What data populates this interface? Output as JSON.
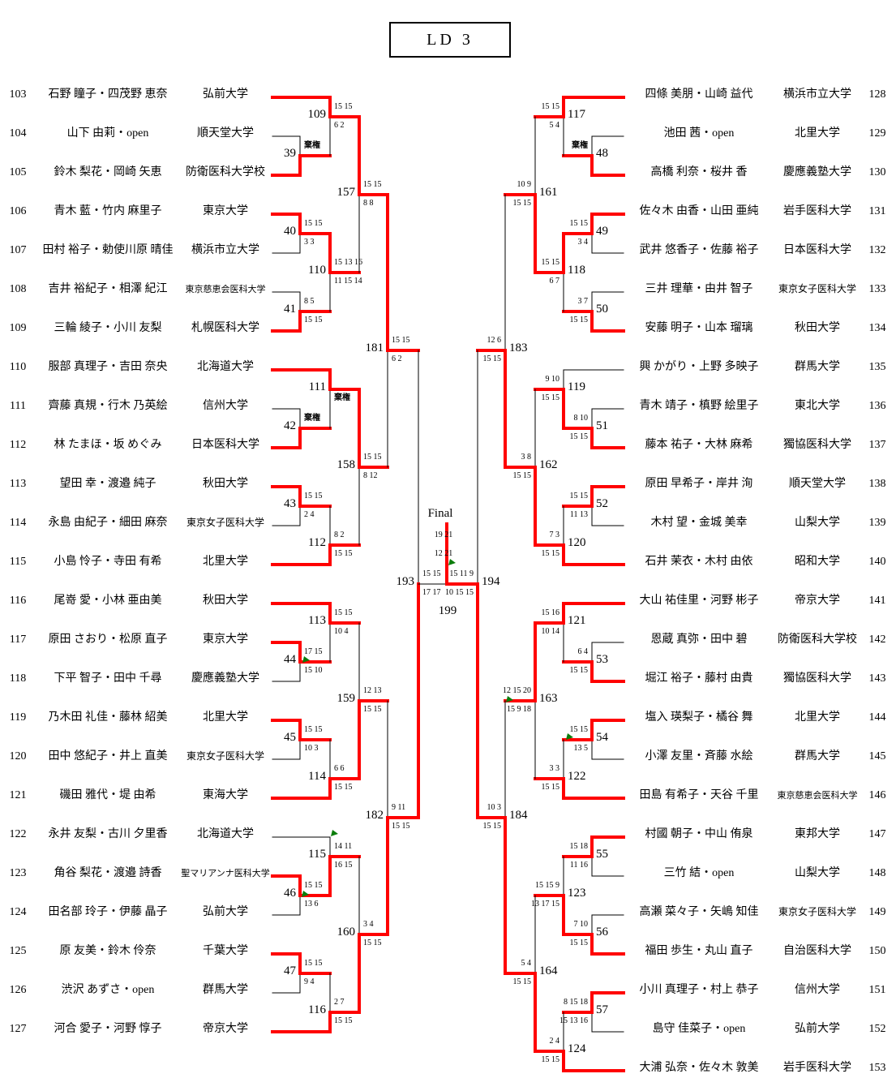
{
  "title": "LD 3",
  "colors": {
    "winner": "#ff0000",
    "line": "#000000",
    "flag": "#0b7d0b"
  },
  "final": {
    "label": "Final",
    "match_number": "199",
    "scores": {
      "game1": "19 21",
      "game2": "12 21"
    }
  },
  "entries_left": [
    {
      "seed": "103",
      "names": "石野 瞳子・四茂野 恵奈",
      "university": "弘前大学"
    },
    {
      "seed": "104",
      "names": "山下 由莉・open",
      "university": "順天堂大学"
    },
    {
      "seed": "105",
      "names": "鈴木 梨花・岡崎 矢恵",
      "university": "防衛医科大学校"
    },
    {
      "seed": "106",
      "names": "青木 藍・竹内 麻里子",
      "university": "東京大学"
    },
    {
      "seed": "107",
      "names": "田村 裕子・勅使川原 晴佳",
      "university": "横浜市立大学"
    },
    {
      "seed": "108",
      "names": "吉井 裕紀子・相澤 紀江",
      "university": "東京慈恵会医科大学"
    },
    {
      "seed": "109",
      "names": "三輪 綾子・小川 友梨",
      "university": "札幌医科大学"
    },
    {
      "seed": "110",
      "names": "服部 真理子・吉田 奈央",
      "university": "北海道大学"
    },
    {
      "seed": "111",
      "names": "齊藤 真規・行木 乃英絵",
      "university": "信州大学"
    },
    {
      "seed": "112",
      "names": "林 たまほ・坂 めぐみ",
      "university": "日本医科大学"
    },
    {
      "seed": "113",
      "names": "望田 幸・渡邉 純子",
      "university": "秋田大学"
    },
    {
      "seed": "114",
      "names": "永島 由紀子・細田 麻奈",
      "university": "東京女子医科大学"
    },
    {
      "seed": "115",
      "names": "小島 怜子・寺田 有希",
      "university": "北里大学"
    },
    {
      "seed": "116",
      "names": "尾嵜 愛・小林 亜由美",
      "university": "秋田大学"
    },
    {
      "seed": "117",
      "names": "原田 さおり・松原 直子",
      "university": "東京大学"
    },
    {
      "seed": "118",
      "names": "下平 智子・田中 千尋",
      "university": "慶應義塾大学"
    },
    {
      "seed": "119",
      "names": "乃木田 礼佳・藤林 紹美",
      "university": "北里大学"
    },
    {
      "seed": "120",
      "names": "田中 悠紀子・井上 直美",
      "university": "東京女子医科大学"
    },
    {
      "seed": "121",
      "names": "磯田 雅代・堤 由希",
      "university": "東海大学"
    },
    {
      "seed": "122",
      "names": "永井 友梨・古川 夕里香",
      "university": "北海道大学"
    },
    {
      "seed": "123",
      "names": "角谷 梨花・渡邉 詩香",
      "university": "聖マリアンナ医科大学"
    },
    {
      "seed": "124",
      "names": "田名部 玲子・伊藤 晶子",
      "university": "弘前大学"
    },
    {
      "seed": "125",
      "names": "原 友美・鈴木 伶奈",
      "university": "千葉大学"
    },
    {
      "seed": "126",
      "names": "渋沢 あずさ・open",
      "university": "群馬大学"
    },
    {
      "seed": "127",
      "names": "河合 愛子・河野 惇子",
      "university": "帝京大学"
    }
  ],
  "entries_right": [
    {
      "seed": "128",
      "names": "四條 美朋・山崎 益代",
      "university": "横浜市立大学"
    },
    {
      "seed": "129",
      "names": "池田 茜・open",
      "university": "北里大学"
    },
    {
      "seed": "130",
      "names": "高橋 利奈・桜井 香",
      "university": "慶應義塾大学"
    },
    {
      "seed": "131",
      "names": "佐々木 由香・山田 亜純",
      "university": "岩手医科大学"
    },
    {
      "seed": "132",
      "names": "武井 悠香子・佐藤 裕子",
      "university": "日本医科大学"
    },
    {
      "seed": "133",
      "names": "三井 理華・由井 智子",
      "university": "東京女子医科大学"
    },
    {
      "seed": "134",
      "names": "安藤 明子・山本 瑠璃",
      "university": "秋田大学"
    },
    {
      "seed": "135",
      "names": "興 かがり・上野 多映子",
      "university": "群馬大学"
    },
    {
      "seed": "136",
      "names": "青木 靖子・槙野 絵里子",
      "university": "東北大学"
    },
    {
      "seed": "137",
      "names": "藤本 祐子・大林 麻希",
      "university": "獨協医科大学"
    },
    {
      "seed": "138",
      "names": "原田 早希子・岸井 洵",
      "university": "順天堂大学"
    },
    {
      "seed": "139",
      "names": "木村 望・金城 美幸",
      "university": "山梨大学"
    },
    {
      "seed": "140",
      "names": "石井 茉衣・木村 由依",
      "university": "昭和大学"
    },
    {
      "seed": "141",
      "names": "大山 祐佳里・河野 彬子",
      "university": "帝京大学"
    },
    {
      "seed": "142",
      "names": "恩蔵 真弥・田中 碧",
      "university": "防衛医科大学校"
    },
    {
      "seed": "143",
      "names": "堀江 裕子・藤村 由貴",
      "university": "獨協医科大学"
    },
    {
      "seed": "144",
      "names": "塩入 瑛梨子・橘谷 舞",
      "university": "北里大学"
    },
    {
      "seed": "145",
      "names": "小澤 友里・斉藤 水絵",
      "university": "群馬大学"
    },
    {
      "seed": "146",
      "names": "田島 有希子・天谷 千里",
      "university": "東京慈恵会医科大学"
    },
    {
      "seed": "147",
      "names": "村國 朝子・中山 侑泉",
      "university": "東邦大学"
    },
    {
      "seed": "148",
      "names": "三竹 結・open",
      "university": "山梨大学"
    },
    {
      "seed": "149",
      "names": "高瀬 菜々子・矢嶋 知佳",
      "university": "東京女子医科大学"
    },
    {
      "seed": "150",
      "names": "福田 歩生・丸山 直子",
      "university": "自治医科大学"
    },
    {
      "seed": "151",
      "names": "小川 真理子・村上 恭子",
      "university": "信州大学"
    },
    {
      "seed": "152",
      "names": "島守 佳菜子・open",
      "university": "弘前大学"
    },
    {
      "seed": "153",
      "names": "大浦 弘奈・佐々木 敦美",
      "university": "岩手医科大学"
    }
  ],
  "matches": {
    "39": {
      "label": "39",
      "top": "棄権",
      "bottom": "",
      "winner": "bottom"
    },
    "40": {
      "label": "40",
      "top": "15 15",
      "bottom": "3 3",
      "winner": "top"
    },
    "41": {
      "label": "41",
      "top": "8 5",
      "bottom": "15 15",
      "winner": "bottom"
    },
    "42": {
      "label": "42",
      "top": "棄権",
      "bottom": "",
      "winner": "bottom"
    },
    "43": {
      "label": "43",
      "top": "15 15",
      "bottom": "2 4",
      "winner": "top"
    },
    "44": {
      "label": "44",
      "top": "17 15",
      "bottom": "15 10",
      "winner": "top"
    },
    "45": {
      "label": "45",
      "top": "15 15",
      "bottom": "10 3",
      "winner": "top"
    },
    "46": {
      "label": "46",
      "top": "15 15",
      "bottom": "13 6",
      "winner": "top"
    },
    "47": {
      "label": "47",
      "top": "15 15",
      "bottom": "9 4",
      "winner": "top"
    },
    "48": {
      "label": "48",
      "top": "棄権",
      "bottom": "",
      "winner": "bottom"
    },
    "49": {
      "label": "49",
      "top": "15 15",
      "bottom": "3 4",
      "winner": "top"
    },
    "50": {
      "label": "50",
      "top": "3 7",
      "bottom": "15 15",
      "winner": "bottom"
    },
    "51": {
      "label": "51",
      "top": "8 10",
      "bottom": "15 15",
      "winner": "bottom"
    },
    "52": {
      "label": "52",
      "top": "15 15",
      "bottom": "11 13",
      "winner": "top"
    },
    "53": {
      "label": "53",
      "top": "6 4",
      "bottom": "15 15",
      "winner": "bottom"
    },
    "54": {
      "label": "54",
      "top": "15 15",
      "bottom": "13 5",
      "winner": "top"
    },
    "55": {
      "label": "55",
      "top": "15 18",
      "bottom": "11 16",
      "winner": "top"
    },
    "56": {
      "label": "56",
      "top": "7 10",
      "bottom": "15 15",
      "winner": "bottom"
    },
    "57": {
      "label": "57",
      "top": "8 15 18",
      "bottom": "15 13 16",
      "winner": "top"
    },
    "109": {
      "label": "109",
      "top": "15 15",
      "bottom": "6 2",
      "winner": "top"
    },
    "110": {
      "label": "110",
      "top": "15 13 16",
      "bottom": "11 15 14",
      "winner": "top"
    },
    "111": {
      "label": "111",
      "top": "",
      "bottom": "棄権",
      "winner": "top"
    },
    "112": {
      "label": "112",
      "top": "8 2",
      "bottom": "15 15",
      "winner": "bottom"
    },
    "113": {
      "label": "113",
      "top": "15 15",
      "bottom": "10 4",
      "winner": "top"
    },
    "114": {
      "label": "114",
      "top": "6 6",
      "bottom": "15 15",
      "winner": "bottom"
    },
    "115": {
      "label": "115",
      "top": "14 11",
      "bottom": "16 15",
      "winner": "bottom"
    },
    "116": {
      "label": "116",
      "top": "2 7",
      "bottom": "15 15",
      "winner": "bottom"
    },
    "117": {
      "label": "117",
      "top": "15 15",
      "bottom": "5 4",
      "winner": "top"
    },
    "118": {
      "label": "118",
      "top": "15 15",
      "bottom": "6 7",
      "winner": "top"
    },
    "119": {
      "label": "119",
      "top": "9 10",
      "bottom": "15 15",
      "winner": "bottom"
    },
    "120": {
      "label": "120",
      "top": "7 3",
      "bottom": "15 15",
      "winner": "bottom"
    },
    "121": {
      "label": "121",
      "top": "15 16",
      "bottom": "10 14",
      "winner": "top"
    },
    "122": {
      "label": "122",
      "top": "3 3",
      "bottom": "15 15",
      "winner": "bottom"
    },
    "123": {
      "label": "123",
      "top": "15 15 9",
      "bottom": "13 17 15",
      "winner": "bottom"
    },
    "124": {
      "label": "124",
      "top": "2 4",
      "bottom": "15 15",
      "winner": "bottom"
    },
    "157": {
      "label": "157",
      "top": "15 15",
      "bottom": "8 8",
      "winner": "top"
    },
    "158": {
      "label": "158",
      "top": "15 15",
      "bottom": "8 12",
      "winner": "top"
    },
    "159": {
      "label": "159",
      "top": "12 13",
      "bottom": "15 15",
      "winner": "bottom"
    },
    "160": {
      "label": "160",
      "top": "3 4",
      "bottom": "15 15",
      "winner": "bottom"
    },
    "161": {
      "label": "161",
      "top": "10 9",
      "bottom": "15 15",
      "winner": "bottom"
    },
    "162": {
      "label": "162",
      "top": "3 8",
      "bottom": "15 15",
      "winner": "bottom"
    },
    "163": {
      "label": "163",
      "top": "12 15 20",
      "bottom": "15 9 18",
      "winner": "top"
    },
    "164": {
      "label": "164",
      "top": "5 4",
      "bottom": "15 15",
      "winner": "bottom"
    },
    "181": {
      "label": "181",
      "top": "15 15",
      "bottom": "6 2",
      "winner": "top"
    },
    "182": {
      "label": "182",
      "top": "9 11",
      "bottom": "15 15",
      "winner": "bottom"
    },
    "183": {
      "label": "183",
      "top": "12 6",
      "bottom": "15 15",
      "winner": "bottom"
    },
    "184": {
      "label": "184",
      "top": "10 3",
      "bottom": "15 15",
      "winner": "bottom"
    },
    "193": {
      "label": "193",
      "top": "15 15",
      "bottom": "17 17",
      "winner": "bottom"
    },
    "194": {
      "label": "194",
      "top": "15 11 9",
      "bottom": "10 15 15",
      "winner": "bottom"
    },
    "199": {
      "label": "199",
      "top": "19 21",
      "bottom": "12 21",
      "winner": "right"
    }
  }
}
